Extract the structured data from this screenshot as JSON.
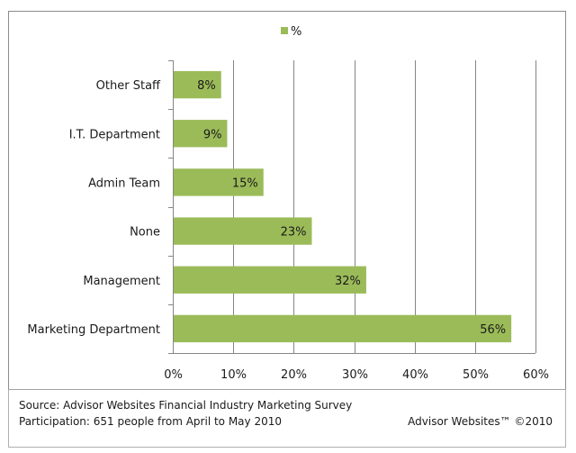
{
  "chart_data": {
    "type": "bar",
    "orientation": "horizontal",
    "title": "",
    "categories": [
      "Other Staff",
      "I.T. Department",
      "Admin Team",
      "None",
      "Management",
      "Marketing Department"
    ],
    "series": [
      {
        "name": "%",
        "values": [
          8,
          9,
          15,
          23,
          32,
          56
        ],
        "color": "#9bbb59"
      }
    ],
    "value_labels": [
      "8%",
      "9%",
      "15%",
      "23%",
      "32%",
      "56%"
    ],
    "xlabel": "",
    "ylabel": "",
    "xlim": [
      0,
      60
    ],
    "x_ticks": [
      0,
      10,
      20,
      30,
      40,
      50,
      60
    ],
    "x_tick_labels": [
      "0%",
      "10%",
      "20%",
      "30%",
      "40%",
      "50%",
      "60%"
    ],
    "grid": true,
    "legend": {
      "position": "top-center",
      "entries": [
        "%"
      ]
    }
  },
  "footer": {
    "source": "Source: Advisor Websites Financial Industry Marketing Survey",
    "participation": "Participation: 651 people from April to May 2010",
    "copyright": "Advisor Websites™ ©2010"
  },
  "colors": {
    "bar": "#9bbb59",
    "grid": "#868686",
    "border": "#8c8c8c"
  }
}
